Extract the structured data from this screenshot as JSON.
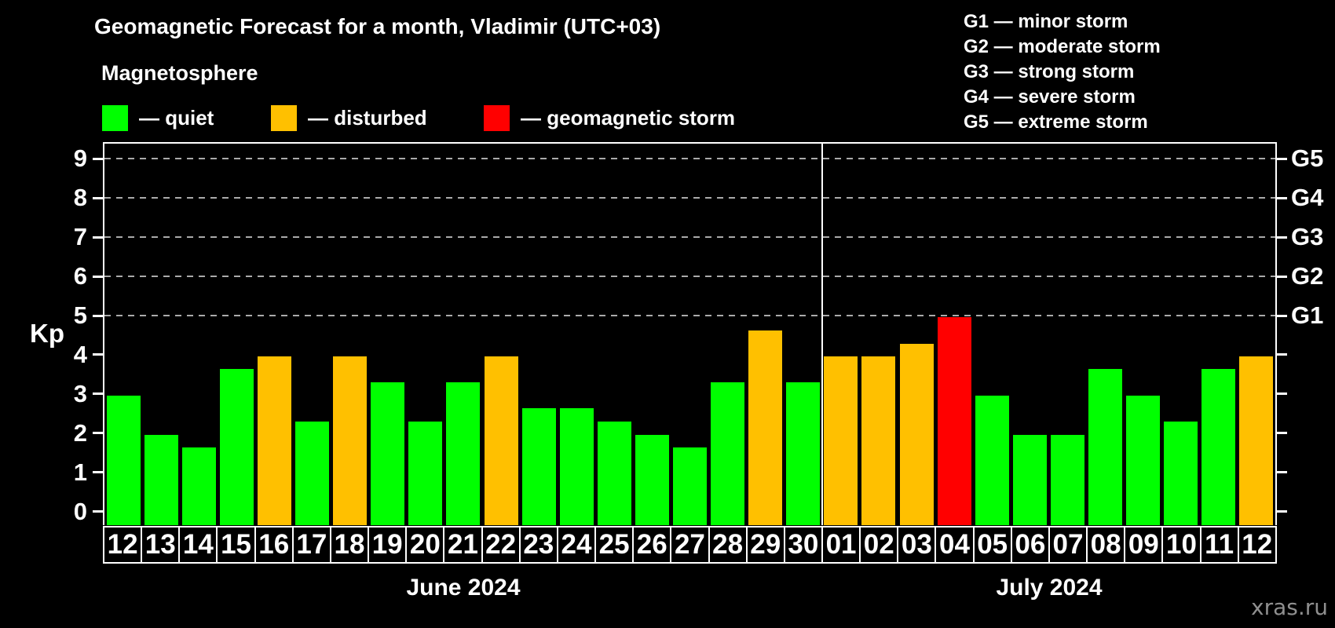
{
  "title": "Geomagnetic Forecast for a month, Vladimir (UTC+03)",
  "subtitle": "Magnetosphere",
  "legend": {
    "items": [
      {
        "key": "quiet",
        "label": "— quiet",
        "color": "#00ff00"
      },
      {
        "key": "disturbed",
        "label": "— disturbed",
        "color": "#ffc000"
      },
      {
        "key": "storm",
        "label": "— geomagnetic storm",
        "color": "#ff0000"
      }
    ]
  },
  "g_legend": [
    "G1 — minor storm",
    "G2 — moderate storm",
    "G3 — strong storm",
    "G4 — severe storm",
    "G5 — extreme storm"
  ],
  "watermark": "xras.ru",
  "chart_data": {
    "type": "bar",
    "ylabel": "Kp",
    "ylim": [
      0,
      9.4
    ],
    "yticks": [
      0,
      1,
      2,
      3,
      4,
      5,
      6,
      7,
      8,
      9
    ],
    "gridlines_at": [
      5,
      6,
      7,
      8,
      9
    ],
    "grid": "dashed, only at G-storm levels",
    "g_axis": [
      {
        "label": "G1",
        "kp": 5
      },
      {
        "label": "G2",
        "kp": 6
      },
      {
        "label": "G3",
        "kp": 7
      },
      {
        "label": "G4",
        "kp": 8
      },
      {
        "label": "G5",
        "kp": 9
      }
    ],
    "months": [
      {
        "label": "June 2024",
        "days": [
          {
            "day": "12",
            "kp": 3.0,
            "level": "quiet"
          },
          {
            "day": "13",
            "kp": 2.0,
            "level": "quiet"
          },
          {
            "day": "14",
            "kp": 1.67,
            "level": "quiet"
          },
          {
            "day": "15",
            "kp": 3.67,
            "level": "quiet"
          },
          {
            "day": "16",
            "kp": 4.0,
            "level": "disturbed"
          },
          {
            "day": "17",
            "kp": 2.33,
            "level": "quiet"
          },
          {
            "day": "18",
            "kp": 4.0,
            "level": "disturbed"
          },
          {
            "day": "19",
            "kp": 3.33,
            "level": "quiet"
          },
          {
            "day": "20",
            "kp": 2.33,
            "level": "quiet"
          },
          {
            "day": "21",
            "kp": 3.33,
            "level": "quiet"
          },
          {
            "day": "22",
            "kp": 4.0,
            "level": "disturbed"
          },
          {
            "day": "23",
            "kp": 2.67,
            "level": "quiet"
          },
          {
            "day": "24",
            "kp": 2.67,
            "level": "quiet"
          },
          {
            "day": "25",
            "kp": 2.33,
            "level": "quiet"
          },
          {
            "day": "26",
            "kp": 2.0,
            "level": "quiet"
          },
          {
            "day": "27",
            "kp": 1.67,
            "level": "quiet"
          },
          {
            "day": "28",
            "kp": 3.33,
            "level": "quiet"
          },
          {
            "day": "29",
            "kp": 4.67,
            "level": "disturbed"
          },
          {
            "day": "30",
            "kp": 3.33,
            "level": "quiet"
          }
        ]
      },
      {
        "label": "July 2024",
        "days": [
          {
            "day": "01",
            "kp": 4.0,
            "level": "disturbed"
          },
          {
            "day": "02",
            "kp": 4.0,
            "level": "disturbed"
          },
          {
            "day": "03",
            "kp": 4.33,
            "level": "disturbed"
          },
          {
            "day": "04",
            "kp": 5.0,
            "level": "storm"
          },
          {
            "day": "05",
            "kp": 3.0,
            "level": "quiet"
          },
          {
            "day": "06",
            "kp": 2.0,
            "level": "quiet"
          },
          {
            "day": "07",
            "kp": 2.0,
            "level": "quiet"
          },
          {
            "day": "08",
            "kp": 3.67,
            "level": "quiet"
          },
          {
            "day": "09",
            "kp": 3.0,
            "level": "quiet"
          },
          {
            "day": "10",
            "kp": 2.33,
            "level": "quiet"
          },
          {
            "day": "11",
            "kp": 3.67,
            "level": "quiet"
          },
          {
            "day": "12",
            "kp": 4.0,
            "level": "disturbed"
          }
        ]
      }
    ]
  }
}
